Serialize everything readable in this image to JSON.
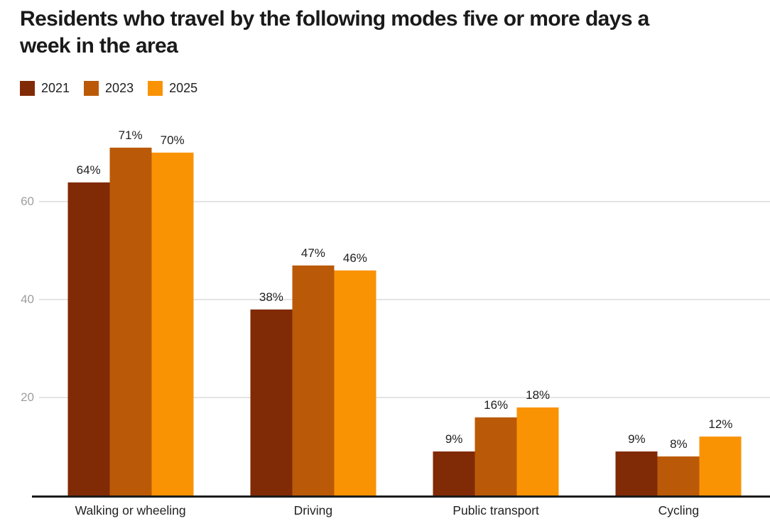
{
  "title": {
    "text": "Residents who travel by the following modes five or more days a week in the area",
    "lines": [
      "Residents who travel by the following modes five or more days a",
      "week in the area"
    ]
  },
  "chart_data": {
    "type": "bar",
    "title": "Residents who travel by the following modes five or more days a week in the area",
    "categories": [
      "Walking or wheeling",
      "Driving",
      "Public transport",
      "Cycling"
    ],
    "series": [
      {
        "name": "2021",
        "color": "#812A06",
        "values": [
          64,
          38,
          9,
          9
        ]
      },
      {
        "name": "2023",
        "color": "#BA5A08",
        "values": [
          71,
          47,
          16,
          8
        ]
      },
      {
        "name": "2025",
        "color": "#FA9304",
        "values": [
          70,
          46,
          18,
          12
        ]
      }
    ],
    "value_suffix": "%",
    "xlabel": "",
    "ylabel": "",
    "yticks": [
      20,
      40,
      60
    ],
    "ylim": [
      0,
      78
    ],
    "grid": "horizontal",
    "legend_position": "top-left",
    "colors": {
      "axis_line": "#1b1b1b",
      "gridline": "#e4e4e4",
      "tick_label": "#9e9e9e",
      "label_text": "#212121",
      "title_text": "#1a1a1a"
    }
  }
}
